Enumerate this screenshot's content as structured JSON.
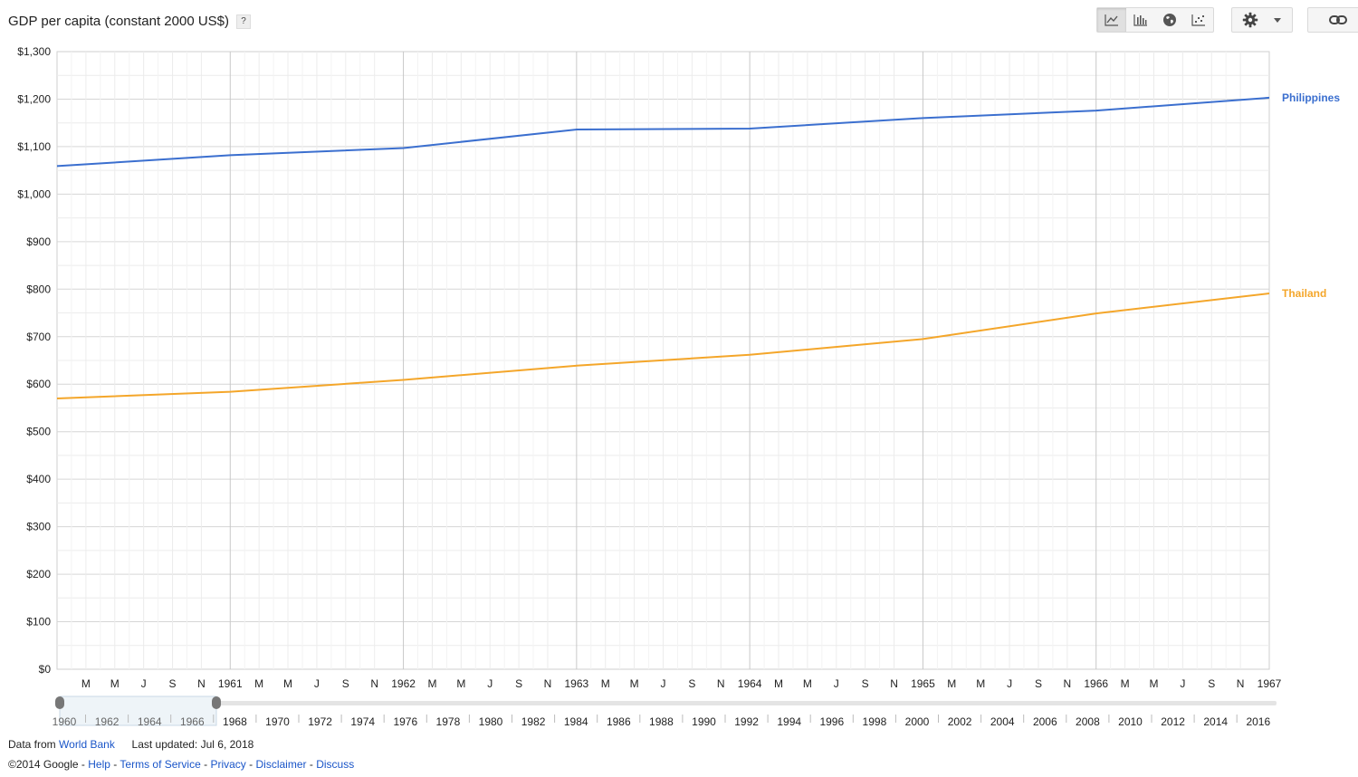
{
  "header": {
    "title": "GDP per capita (constant 2000 US$)",
    "help_label": "?"
  },
  "toolbar": {
    "chart_types": [
      {
        "icon": "line-chart-icon"
      },
      {
        "icon": "bar-chart-icon"
      },
      {
        "icon": "map-globe-icon"
      },
      {
        "icon": "scatter-chart-icon"
      }
    ],
    "settings_icon": "gear-icon",
    "link_icon": "link-icon"
  },
  "chart_data": {
    "type": "line",
    "title": "GDP per capita (constant 2000 US$)",
    "ylim": [
      0,
      1300
    ],
    "y_ticks": [
      "$0",
      "$100",
      "$200",
      "$300",
      "$400",
      "$500",
      "$600",
      "$700",
      "$800",
      "$900",
      "$1,000",
      "$1,100",
      "$1,200",
      "$1,300"
    ],
    "x_labels": [
      "M",
      "M",
      "J",
      "S",
      "N",
      "1961",
      "M",
      "M",
      "J",
      "S",
      "N",
      "1962",
      "M",
      "M",
      "J",
      "S",
      "N",
      "1963",
      "M",
      "M",
      "J",
      "S",
      "N",
      "1964",
      "M",
      "M",
      "J",
      "S",
      "N",
      "1965",
      "M",
      "M",
      "J",
      "S",
      "N",
      "1966",
      "M",
      "M",
      "J",
      "S",
      "N",
      "1967"
    ],
    "x_major_years": [
      "1961",
      "1962",
      "1963",
      "1964",
      "1965",
      "1966",
      "1967"
    ],
    "grid": true,
    "legend": "right, at line ends",
    "series": [
      {
        "name": "Philippines",
        "color": "#3b6fcf",
        "x": [
          "1960",
          "1961",
          "1962",
          "1963",
          "1964",
          "1965",
          "1966",
          "1967"
        ],
        "values": [
          1059,
          1082,
          1097,
          1136,
          1138,
          1160,
          1176,
          1203
        ]
      },
      {
        "name": "Thailand",
        "color": "#f4a62a",
        "x": [
          "1960",
          "1961",
          "1962",
          "1963",
          "1964",
          "1965",
          "1966",
          "1967"
        ],
        "values": [
          570,
          584,
          609,
          639,
          662,
          695,
          749,
          791
        ]
      }
    ]
  },
  "timeline": {
    "years": [
      "1960",
      "1962",
      "1964",
      "1966",
      "1968",
      "1970",
      "1972",
      "1974",
      "1976",
      "1978",
      "1980",
      "1982",
      "1984",
      "1986",
      "1988",
      "1990",
      "1992",
      "1994",
      "1996",
      "1998",
      "2000",
      "2002",
      "2004",
      "2006",
      "2008",
      "2010",
      "2012",
      "2014",
      "2016"
    ],
    "selected_from": "1960",
    "selected_to": "1967"
  },
  "footer": {
    "data_from_label": "Data from",
    "source_link": "World Bank",
    "last_updated": "Last updated: Jul 6, 2018",
    "copyright": "©2014 Google -",
    "links": [
      "Help",
      "Terms of Service",
      "Privacy",
      "Disclaimer",
      "Discuss"
    ],
    "separator": "-"
  }
}
